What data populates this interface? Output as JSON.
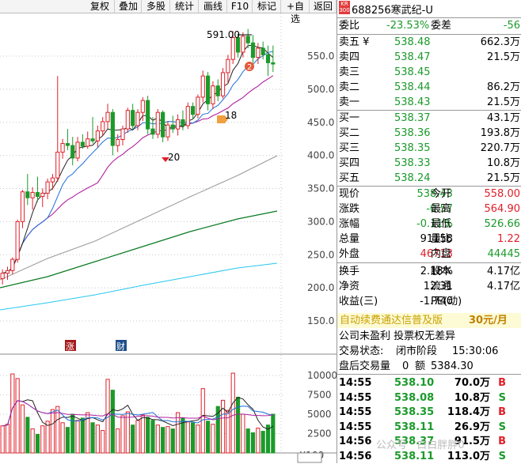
{
  "toolbar": {
    "items": [
      "复权",
      "叠加",
      "多股",
      "统计",
      "画线",
      "F10",
      "标记",
      "+自选",
      "返回"
    ]
  },
  "stock": {
    "badge_top": "KR",
    "badge_bottom": "300",
    "code": "688256",
    "name": "寒武纪-U"
  },
  "ratio": {
    "wb_label": "委比",
    "wb_value": "-23.53%",
    "wc_label": "委差",
    "wc_value": "-56"
  },
  "asks": [
    {
      "label": "卖五 ¥",
      "price": "538.48",
      "vol": "662.3万"
    },
    {
      "label": "卖四",
      "price": "538.47",
      "vol": "21.5万"
    },
    {
      "label": "卖三",
      "price": "538.45",
      "vol": ""
    },
    {
      "label": "卖二",
      "price": "538.44",
      "vol": "86.2万"
    },
    {
      "label": "卖一",
      "price": "538.43",
      "vol": "21.5万"
    }
  ],
  "bids": [
    {
      "label": "买一",
      "price": "538.37",
      "vol": "43.1万"
    },
    {
      "label": "买二",
      "price": "538.36",
      "vol": "193.8万"
    },
    {
      "label": "买三",
      "price": "538.35",
      "vol": "220.7万"
    },
    {
      "label": "买四",
      "price": "538.33",
      "vol": "10.8万"
    },
    {
      "label": "买五",
      "price": "538.24",
      "vol": "21.5万"
    }
  ],
  "quote": [
    {
      "l1": "现价",
      "v1": "538.43",
      "c1": "g",
      "l2": "今开",
      "v2": "558.00",
      "c2": "r"
    },
    {
      "l1": "涨跌",
      "v1": "-0.57",
      "c1": "g",
      "l2": "最高",
      "v2": "564.90",
      "c2": "r"
    },
    {
      "l1": "涨幅",
      "v1": "-0.11%",
      "c1": "g",
      "l2": "最低",
      "v2": "526.66",
      "c2": "g"
    },
    {
      "l1": "总量",
      "v1": "91158",
      "c1": "k",
      "l2": "量比",
      "v2": "1.22",
      "c2": "r"
    },
    {
      "l1": "外盘",
      "v1": "46713",
      "c1": "r",
      "l2": "内盘",
      "v2": "44445",
      "c2": "g"
    }
  ],
  "finance": [
    {
      "l1": "换手",
      "v1": "2.18%",
      "l2": "股本",
      "v2": "4.17亿"
    },
    {
      "l1": "净资",
      "v1": "12.31",
      "l2": "流通",
      "v2": "4.17亿"
    },
    {
      "l1": "收益(三)",
      "v1": "-1.740",
      "l2": "PE(动)",
      "v2": ""
    }
  ],
  "ad": {
    "text": "自动续费通达信普及版",
    "price": "30元/月"
  },
  "notice": "公司未盈利 投票权无差异",
  "status": {
    "label": "交易状态:",
    "text": "闭市阶段",
    "time": "15:30:06"
  },
  "after_hours": {
    "label": "盘后交易量",
    "value": "0",
    "amt_label": "额",
    "amt_value": "5384.30"
  },
  "ticks": [
    {
      "time": "14:55",
      "price": "538.10",
      "vol": "70.0万",
      "side": "B"
    },
    {
      "time": "14:55",
      "price": "538.08",
      "vol": "10.8万",
      "side": "S"
    },
    {
      "time": "14:55",
      "price": "538.35",
      "vol": "118.4万",
      "side": "B"
    },
    {
      "time": "14:55",
      "price": "538.11",
      "vol": "26.9万",
      "side": "S"
    },
    {
      "time": "14:56",
      "price": "538.37",
      "vol": "91.5万",
      "side": "B"
    },
    {
      "time": "14:56",
      "price": "538.11",
      "vol": "113.0万",
      "side": "S"
    }
  ],
  "watermark": "公众号 · 白白胖胖0",
  "chart_data": {
    "type": "candlestick",
    "price_axis": [
      "550.0",
      "500.0",
      "450.0",
      "400.0",
      "350.0",
      "300.0",
      "250.0",
      "200.0",
      "150.0"
    ],
    "volume_axis": [
      "10000",
      "7500",
      "5000",
      "2500",
      "X100"
    ],
    "annotations": {
      "high": "591.00",
      "marker_2": "2",
      "marker_18": "18",
      "marker_20": "20"
    },
    "badges": [
      "涨",
      "财"
    ],
    "candles": [
      {
        "o": 214,
        "h": 228,
        "l": 205,
        "c": 222
      },
      {
        "o": 222,
        "h": 232,
        "l": 212,
        "c": 226
      },
      {
        "o": 226,
        "h": 246,
        "l": 220,
        "c": 243
      },
      {
        "o": 243,
        "h": 303,
        "l": 238,
        "c": 300
      },
      {
        "o": 300,
        "h": 348,
        "l": 290,
        "c": 345
      },
      {
        "o": 345,
        "h": 372,
        "l": 325,
        "c": 336
      },
      {
        "o": 336,
        "h": 352,
        "l": 318,
        "c": 344
      },
      {
        "o": 344,
        "h": 368,
        "l": 330,
        "c": 338
      },
      {
        "o": 338,
        "h": 350,
        "l": 322,
        "c": 343
      },
      {
        "o": 343,
        "h": 365,
        "l": 334,
        "c": 360
      },
      {
        "o": 360,
        "h": 372,
        "l": 348,
        "c": 366
      },
      {
        "o": 366,
        "h": 520,
        "l": 360,
        "c": 405
      },
      {
        "o": 405,
        "h": 425,
        "l": 395,
        "c": 418
      },
      {
        "o": 418,
        "h": 440,
        "l": 408,
        "c": 415
      },
      {
        "o": 415,
        "h": 428,
        "l": 385,
        "c": 396
      },
      {
        "o": 396,
        "h": 428,
        "l": 391,
        "c": 420
      },
      {
        "o": 420,
        "h": 432,
        "l": 410,
        "c": 414
      },
      {
        "o": 414,
        "h": 436,
        "l": 410,
        "c": 425
      },
      {
        "o": 425,
        "h": 458,
        "l": 418,
        "c": 422
      },
      {
        "o": 422,
        "h": 445,
        "l": 412,
        "c": 437
      },
      {
        "o": 437,
        "h": 458,
        "l": 430,
        "c": 451
      },
      {
        "o": 451,
        "h": 478,
        "l": 440,
        "c": 465
      },
      {
        "o": 465,
        "h": 470,
        "l": 400,
        "c": 415
      },
      {
        "o": 415,
        "h": 432,
        "l": 405,
        "c": 424
      },
      {
        "o": 424,
        "h": 445,
        "l": 415,
        "c": 440
      },
      {
        "o": 440,
        "h": 472,
        "l": 434,
        "c": 468
      },
      {
        "o": 468,
        "h": 478,
        "l": 440,
        "c": 445
      },
      {
        "o": 445,
        "h": 470,
        "l": 438,
        "c": 465
      },
      {
        "o": 465,
        "h": 488,
        "l": 452,
        "c": 483
      },
      {
        "o": 483,
        "h": 490,
        "l": 432,
        "c": 440
      },
      {
        "o": 440,
        "h": 458,
        "l": 425,
        "c": 432
      },
      {
        "o": 432,
        "h": 470,
        "l": 426,
        "c": 465
      },
      {
        "o": 465,
        "h": 468,
        "l": 420,
        "c": 428
      },
      {
        "o": 428,
        "h": 452,
        "l": 422,
        "c": 446
      },
      {
        "o": 446,
        "h": 460,
        "l": 434,
        "c": 440
      },
      {
        "o": 440,
        "h": 462,
        "l": 430,
        "c": 454
      },
      {
        "o": 454,
        "h": 468,
        "l": 438,
        "c": 445
      },
      {
        "o": 445,
        "h": 480,
        "l": 440,
        "c": 474
      },
      {
        "o": 474,
        "h": 480,
        "l": 455,
        "c": 462
      },
      {
        "o": 462,
        "h": 492,
        "l": 456,
        "c": 488
      },
      {
        "o": 488,
        "h": 528,
        "l": 480,
        "c": 520
      },
      {
        "o": 520,
        "h": 526,
        "l": 468,
        "c": 478
      },
      {
        "o": 478,
        "h": 512,
        "l": 470,
        "c": 505
      },
      {
        "o": 505,
        "h": 515,
        "l": 482,
        "c": 490
      },
      {
        "o": 490,
        "h": 532,
        "l": 486,
        "c": 525
      },
      {
        "o": 525,
        "h": 552,
        "l": 508,
        "c": 545
      },
      {
        "o": 545,
        "h": 588,
        "l": 538,
        "c": 578
      },
      {
        "o": 578,
        "h": 584,
        "l": 548,
        "c": 556
      },
      {
        "o": 556,
        "h": 586,
        "l": 548,
        "c": 580
      },
      {
        "o": 580,
        "h": 591,
        "l": 562,
        "c": 570
      },
      {
        "o": 570,
        "h": 582,
        "l": 540,
        "c": 548
      },
      {
        "o": 548,
        "h": 570,
        "l": 538,
        "c": 562
      },
      {
        "o": 562,
        "h": 572,
        "l": 545,
        "c": 552
      },
      {
        "o": 552,
        "h": 566,
        "l": 520,
        "c": 540
      },
      {
        "o": 540,
        "h": 566,
        "l": 526,
        "c": 538
      }
    ],
    "volumes": [
      3500,
      3700,
      10200,
      9600,
      6200,
      4600,
      3100,
      2400,
      3500,
      4100,
      5600,
      6000,
      3900,
      3300,
      5000,
      4200,
      4500,
      5200,
      3900,
      3600,
      2900,
      9500,
      8100,
      3100,
      4800,
      5300,
      3600,
      4200,
      4900,
      4600,
      4200,
      3600,
      3300,
      3400,
      3100,
      5200,
      4500,
      4000,
      3900,
      3600,
      8300,
      4100,
      3700,
      6000,
      6800,
      5500,
      10300,
      7200,
      5000,
      3100,
      2600,
      3200,
      2800,
      3600,
      5000
    ]
  }
}
